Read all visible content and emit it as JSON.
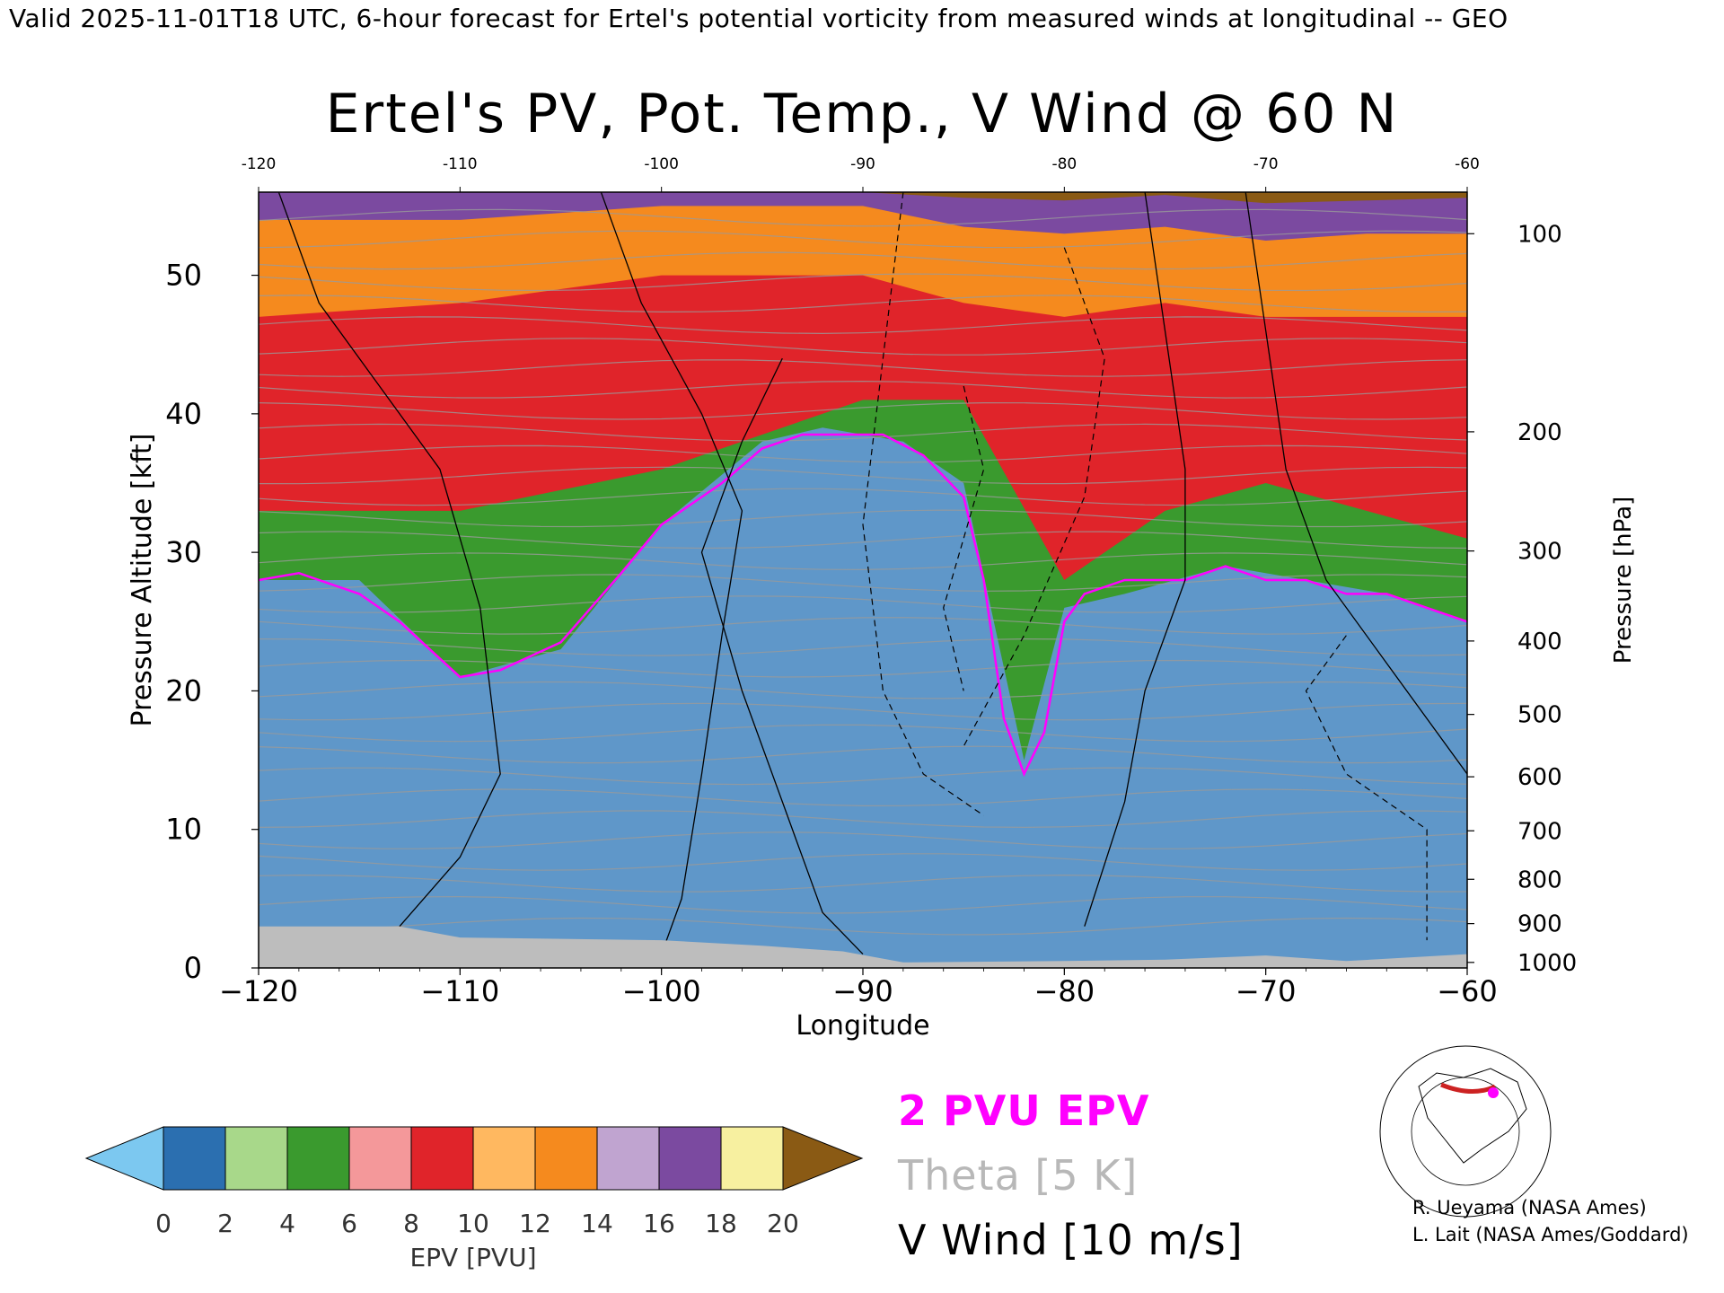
{
  "banner": "Valid 2025-11-01T18 UTC, 6-hour forecast for Ertel's potential vorticity from measured winds at longitudinal -- GEO",
  "chart_data": {
    "type": "heatmap",
    "title": "Ertel's PV, Pot. Temp., V Wind @ 60 N",
    "xlabel": "Longitude",
    "ylabel": "Pressure Altitude [kft]",
    "y2label": "Pressure [hPa]",
    "xlim": [
      -120,
      -60
    ],
    "ylim": [
      0,
      56
    ],
    "x_ticks": [
      -120,
      -110,
      -100,
      -90,
      -80,
      -70,
      -60
    ],
    "top_x_ticks": [
      -120,
      -110,
      -100,
      -90,
      -80,
      -70,
      -60
    ],
    "y_ticks": [
      0,
      10,
      20,
      30,
      40,
      50
    ],
    "pressure_ticks": [
      {
        "hPa": 100,
        "kft": 53
      },
      {
        "hPa": 200,
        "kft": 38.7
      },
      {
        "hPa": 300,
        "kft": 30.1
      },
      {
        "hPa": 400,
        "kft": 23.6
      },
      {
        "hPa": 500,
        "kft": 18.3
      },
      {
        "hPa": 600,
        "kft": 13.8
      },
      {
        "hPa": 700,
        "kft": 9.9
      },
      {
        "hPa": 800,
        "kft": 6.4
      },
      {
        "hPa": 900,
        "kft": 3.2
      },
      {
        "hPa": 1000,
        "kft": 0.4
      }
    ],
    "colorbar": {
      "label": "EPV [PVU]",
      "ticks": [
        0,
        2,
        4,
        6,
        8,
        10,
        12,
        14,
        16,
        18,
        20
      ],
      "colors": [
        "#2b6fb0",
        "#a8d88a",
        "#3a9a2e",
        "#f4989a",
        "#e0242a",
        "#ffb860",
        "#f58a1e",
        "#c0a4d0",
        "#7b4aa0",
        "#f7f0a0"
      ],
      "under_color": "#7cc8f0",
      "over_color": "#8a5a14"
    },
    "epv_layers": [
      {
        "epv": 20,
        "color": "#8a5a14",
        "x": [
          -120,
          -110,
          -100,
          -90,
          -85,
          -80,
          -75,
          -70,
          -65,
          -60
        ],
        "y_bottom": [
          56,
          56,
          56,
          56,
          55.6,
          55.4,
          55.8,
          55.2,
          55.4,
          55.6
        ]
      },
      {
        "epv": 17,
        "color": "#7b4aa0",
        "x": [
          -120,
          -110,
          -100,
          -90,
          -85,
          -80,
          -75,
          -70,
          -65,
          -60
        ],
        "y_bottom": [
          54,
          54,
          55,
          55,
          53.5,
          53,
          53.5,
          52.5,
          53,
          53
        ]
      },
      {
        "epv": 13,
        "color": "#f58a1e",
        "x": [
          -120,
          -110,
          -100,
          -90,
          -85,
          -80,
          -75,
          -70,
          -65,
          -60
        ],
        "y_bottom": [
          47,
          48,
          50,
          50,
          48,
          47,
          48,
          47,
          47,
          47
        ]
      },
      {
        "epv": 9,
        "color": "#e0242a",
        "x": [
          -120,
          -110,
          -100,
          -90,
          -85,
          -80,
          -75,
          -70,
          -65,
          -60
        ],
        "y_bottom": [
          33,
          33,
          36,
          41,
          41,
          28,
          33,
          35,
          33,
          31
        ]
      },
      {
        "epv": 5,
        "color": "#3a9a2e",
        "x": [
          -120,
          -115,
          -110,
          -105,
          -100,
          -95,
          -92,
          -88,
          -85,
          -82,
          -80,
          -77,
          -72,
          -68,
          -64,
          -60
        ],
        "y_bottom": [
          28,
          28,
          21,
          23,
          32,
          38,
          39,
          38,
          35,
          15,
          26,
          27,
          29,
          28,
          27,
          25
        ]
      }
    ],
    "series": [
      {
        "name": "2 PVU EPV",
        "color": "#ff00ff",
        "x": [
          -120,
          -118,
          -115,
          -113,
          -110,
          -108,
          -105,
          -102,
          -100,
          -97,
          -95,
          -93,
          -91,
          -89,
          -87,
          -85,
          -84,
          -83,
          -82,
          -81,
          -80,
          -79,
          -77,
          -74,
          -72,
          -70,
          -68,
          -66,
          -64,
          -62,
          -60
        ],
        "y": [
          28,
          28.5,
          27,
          25,
          21,
          21.5,
          23.5,
          28.5,
          32,
          35,
          37.5,
          38.5,
          38.5,
          38.5,
          37,
          34,
          28,
          18,
          14,
          17,
          25,
          27,
          28,
          28,
          29,
          28,
          28,
          27,
          27,
          26,
          25
        ]
      }
    ],
    "legend": [
      {
        "text": "2 PVU EPV",
        "color": "#ff00ff"
      },
      {
        "text": "Theta [5 K]",
        "color": "#b8b8b8"
      },
      {
        "text": "V Wind [10 m/s]",
        "color": "#000000"
      }
    ]
  },
  "credits": [
    "R. Ueyama (NASA Ames)",
    "L. Lait (NASA Ames/Goddard)"
  ]
}
